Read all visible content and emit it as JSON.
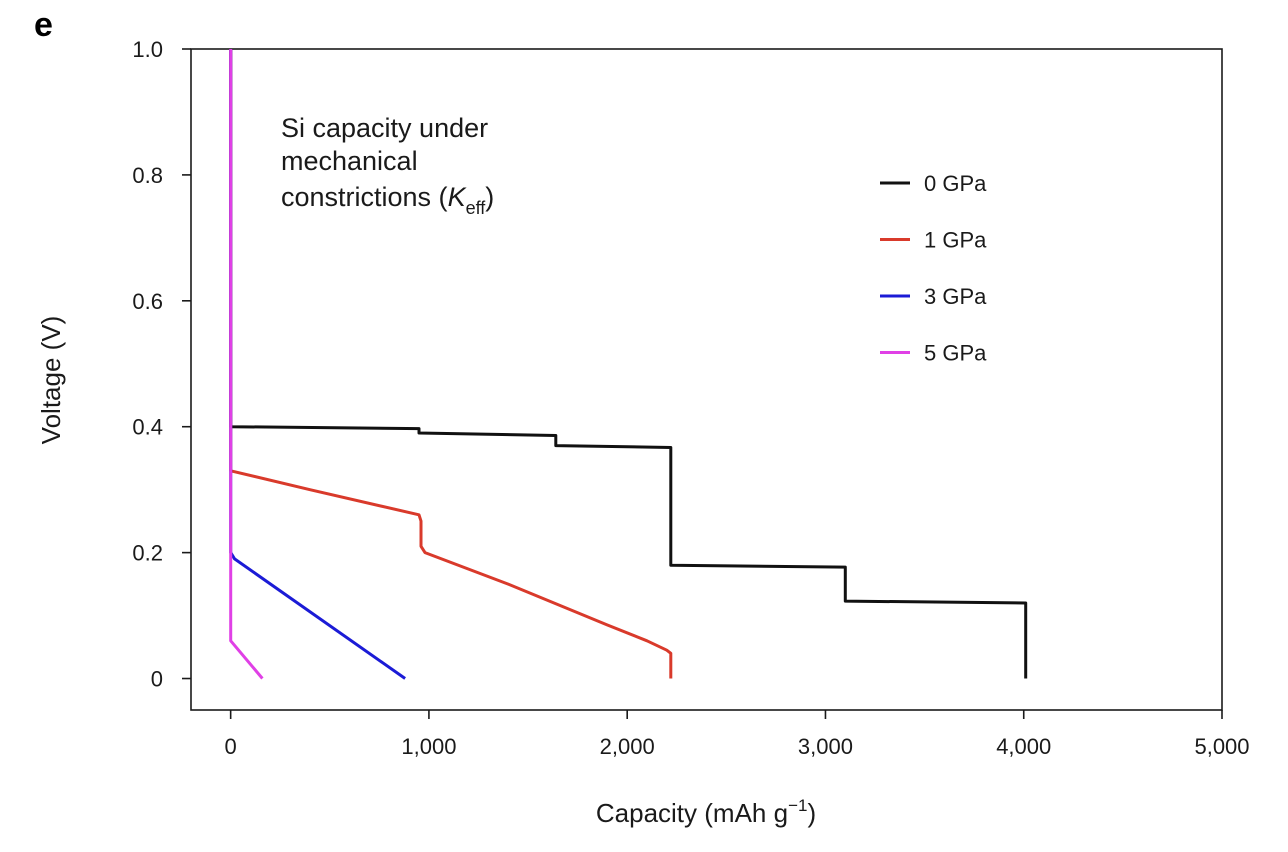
{
  "panel_label": "e",
  "chart_data": {
    "type": "line",
    "xlabel": "Capacity (mAh g",
    "xlabel_sup": "−1",
    "xlabel_end": ")",
    "ylabel": "Voltage (V)",
    "xlim": [
      -200,
      5000
    ],
    "ylim": [
      -0.05,
      1.0
    ],
    "xticks": [
      0,
      1000,
      2000,
      3000,
      4000,
      5000
    ],
    "xtick_labels": [
      "0",
      "1,000",
      "2,000",
      "3,000",
      "4,000",
      "5,000"
    ],
    "yticks": [
      0,
      0.2,
      0.4,
      0.6,
      0.8,
      1.0
    ],
    "ytick_labels": [
      "0",
      "0.2",
      "0.4",
      "0.6",
      "0.8",
      "1.0"
    ],
    "annotation": {
      "line1": "Si capacity under",
      "line2": "mechanical",
      "line3": "constrictions (",
      "k": "K",
      "k_sub": "eff",
      "close": ")"
    },
    "legend_position": "top-right",
    "series": [
      {
        "name": "0 GPa",
        "color": "#111111",
        "points": [
          [
            0,
            1.0
          ],
          [
            0,
            0.4
          ],
          [
            950,
            0.397
          ],
          [
            950,
            0.39
          ],
          [
            1640,
            0.386
          ],
          [
            1640,
            0.37
          ],
          [
            2220,
            0.367
          ],
          [
            2220,
            0.18
          ],
          [
            3100,
            0.177
          ],
          [
            3100,
            0.123
          ],
          [
            4010,
            0.12
          ],
          [
            4010,
            0.0
          ]
        ]
      },
      {
        "name": "1 GPa",
        "color": "#d93a2b",
        "points": [
          [
            0,
            1.0
          ],
          [
            0,
            0.33
          ],
          [
            400,
            0.3
          ],
          [
            950,
            0.26
          ],
          [
            960,
            0.25
          ],
          [
            960,
            0.21
          ],
          [
            980,
            0.2
          ],
          [
            1400,
            0.15
          ],
          [
            1900,
            0.085
          ],
          [
            2100,
            0.06
          ],
          [
            2200,
            0.045
          ],
          [
            2220,
            0.04
          ],
          [
            2220,
            0.0
          ]
        ]
      },
      {
        "name": "3 GPa",
        "color": "#1b1bd6",
        "points": [
          [
            0,
            1.0
          ],
          [
            0,
            0.2
          ],
          [
            20,
            0.19
          ],
          [
            880,
            0.0
          ]
        ]
      },
      {
        "name": "5 GPa",
        "color": "#e040e6",
        "points": [
          [
            0,
            1.0
          ],
          [
            0,
            0.06
          ],
          [
            160,
            0.0
          ]
        ]
      }
    ]
  }
}
